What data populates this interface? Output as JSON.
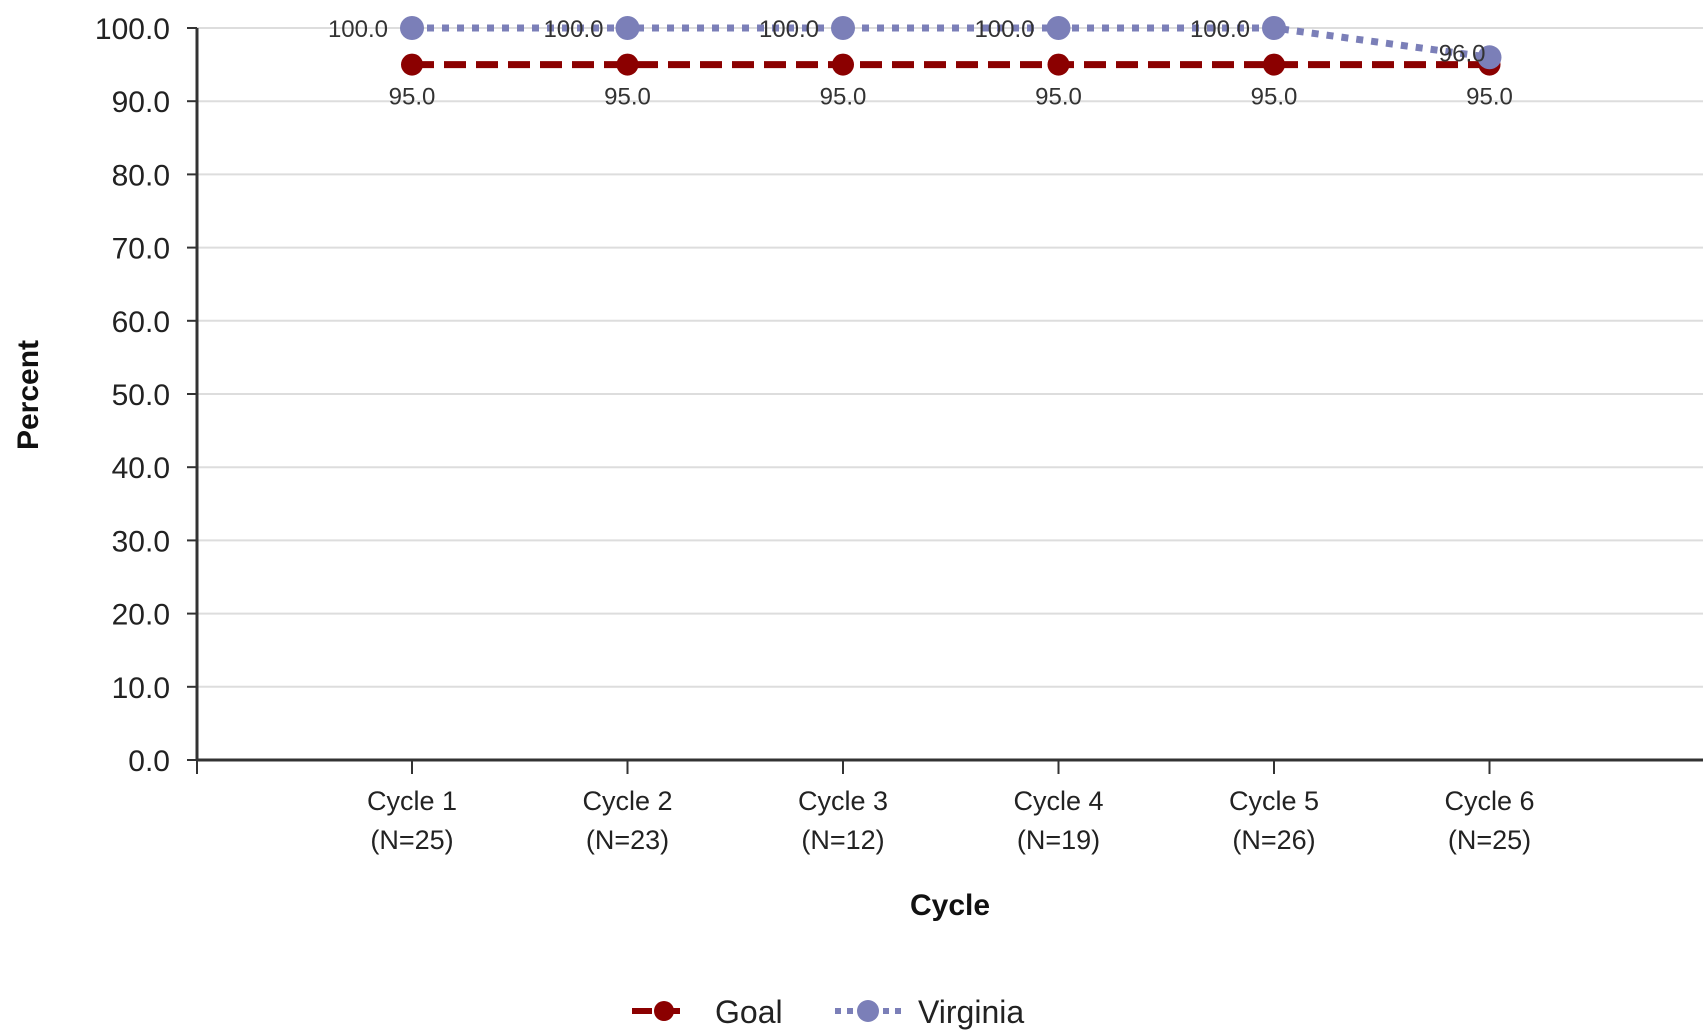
{
  "chart_data": {
    "type": "line",
    "categories": [
      "Cycle 1",
      "Cycle 2",
      "Cycle 3",
      "Cycle 4",
      "Cycle 5",
      "Cycle 6"
    ],
    "category_sublabels": [
      "(N=25)",
      "(N=23)",
      "(N=12)",
      "(N=19)",
      "(N=26)",
      "(N=25)"
    ],
    "series": [
      {
        "name": "Goal",
        "values": [
          95.0,
          95.0,
          95.0,
          95.0,
          95.0,
          95.0
        ],
        "color": "#8b0000",
        "line_style": "dashed"
      },
      {
        "name": "Virginia",
        "values": [
          100.0,
          100.0,
          100.0,
          100.0,
          100.0,
          96.0
        ],
        "color": "#7b7fb8",
        "line_style": "dotted"
      }
    ],
    "data_labels": {
      "Goal": [
        "95.0",
        "95.0",
        "95.0",
        "95.0",
        "95.0",
        "95.0"
      ],
      "Virginia": [
        "100.0",
        "100.0",
        "100.0",
        "100.0",
        "100.0",
        "96.0"
      ]
    },
    "title": "",
    "xlabel": "Cycle",
    "ylabel": "Percent",
    "ylim": [
      0,
      100
    ],
    "yticks": [
      "0.0",
      "10.0",
      "20.0",
      "30.0",
      "40.0",
      "50.0",
      "60.0",
      "70.0",
      "80.0",
      "90.0",
      "100.0"
    ],
    "grid": true,
    "legend_position": "bottom-center"
  }
}
